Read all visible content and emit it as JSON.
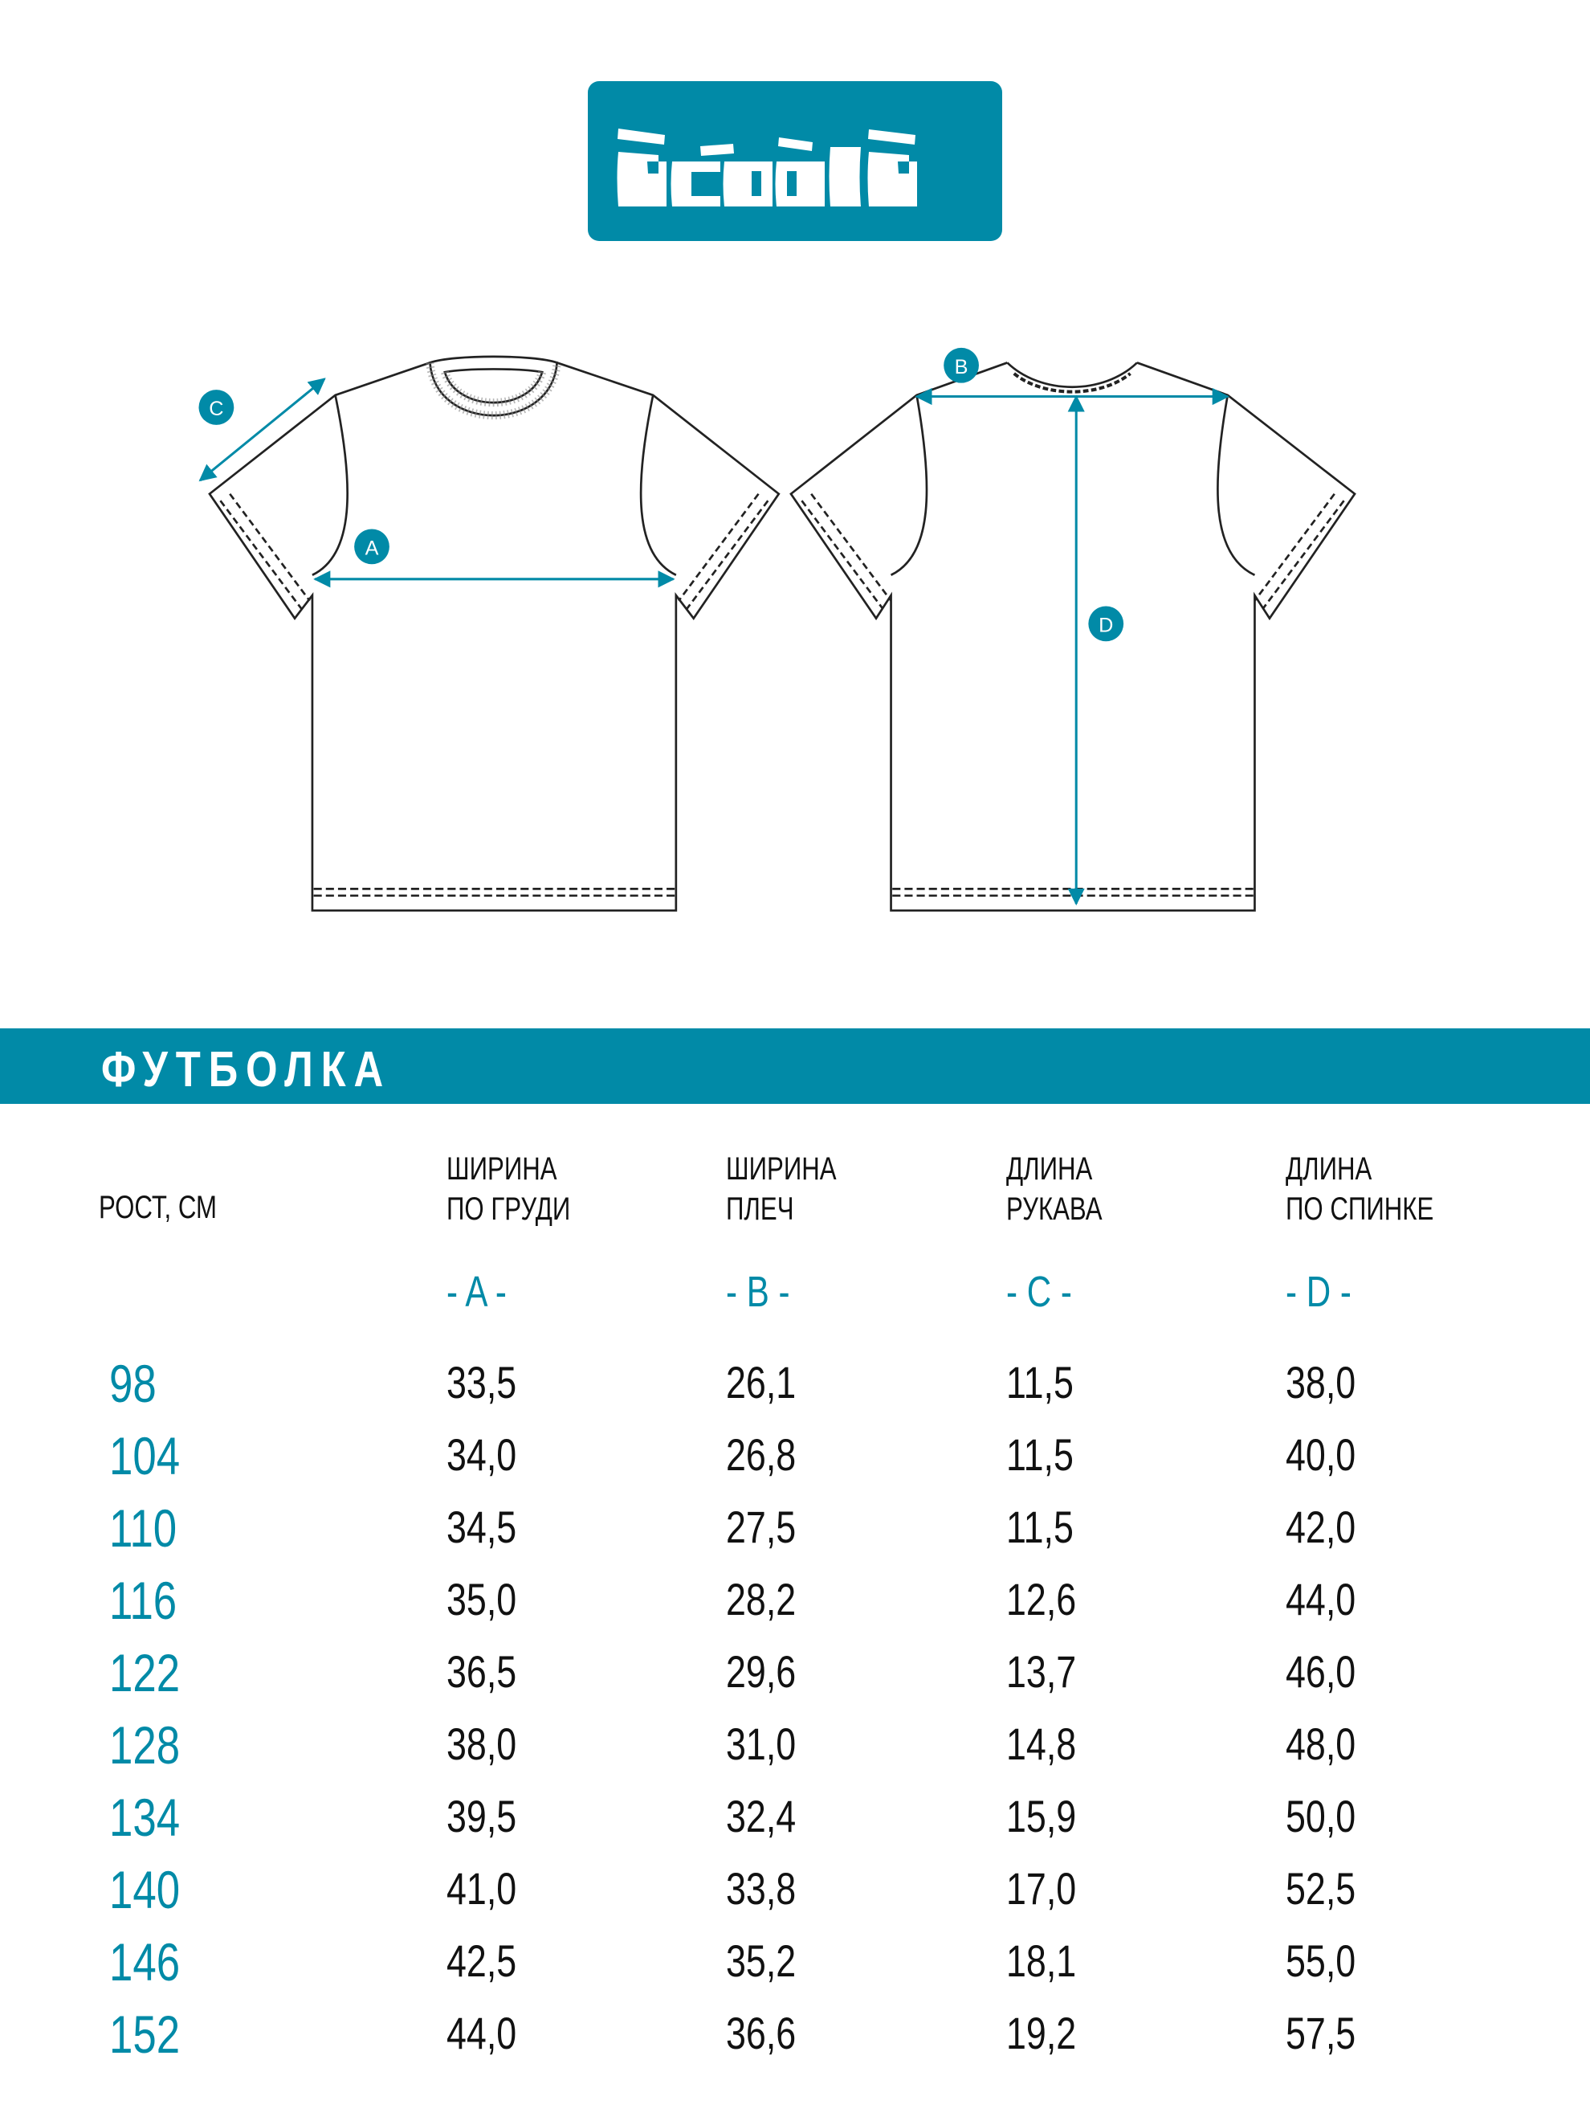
{
  "brand": {
    "logo_text": "acóòla",
    "color": "#018aa7"
  },
  "product_title": "ФУТБОЛКА",
  "diagram_labels": {
    "a": "A",
    "b": "B",
    "c": "C",
    "d": "D"
  },
  "table": {
    "size_header": "РОСТ, СМ",
    "columns": [
      {
        "line1": "ШИРИНА",
        "line2": "ПО ГРУДИ",
        "code": "- A -"
      },
      {
        "line1": "ШИРИНА",
        "line2": "ПЛЕЧ",
        "code": "- B -"
      },
      {
        "line1": "ДЛИНА",
        "line2": "РУКАВА",
        "code": "- C -"
      },
      {
        "line1": "ДЛИНА",
        "line2": "ПО СПИНКЕ",
        "code": "- D -"
      }
    ],
    "rows": [
      {
        "size": "98",
        "values": [
          "33,5",
          "26,1",
          "11,5",
          "38,0"
        ]
      },
      {
        "size": "104",
        "values": [
          "34,0",
          "26,8",
          "11,5",
          "40,0"
        ]
      },
      {
        "size": "110",
        "values": [
          "34,5",
          "27,5",
          "11,5",
          "42,0"
        ]
      },
      {
        "size": "116",
        "values": [
          "35,0",
          "28,2",
          "12,6",
          "44,0"
        ]
      },
      {
        "size": "122",
        "values": [
          "36,5",
          "29,6",
          "13,7",
          "46,0"
        ]
      },
      {
        "size": "128",
        "values": [
          "38,0",
          "31,0",
          "14,8",
          "48,0"
        ]
      },
      {
        "size": "134",
        "values": [
          "39,5",
          "32,4",
          "15,9",
          "50,0"
        ]
      },
      {
        "size": "140",
        "values": [
          "41,0",
          "33,8",
          "17,0",
          "52,5"
        ]
      },
      {
        "size": "146",
        "values": [
          "42,5",
          "35,2",
          "18,1",
          "55,0"
        ]
      },
      {
        "size": "152",
        "values": [
          "44,0",
          "36,6",
          "19,2",
          "57,5"
        ]
      }
    ]
  }
}
